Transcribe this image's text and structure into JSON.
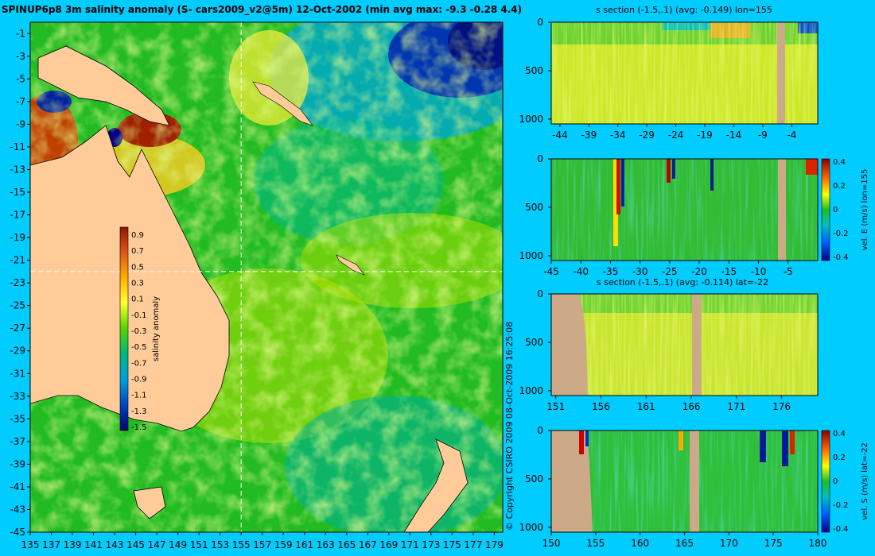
{
  "main_map": {
    "title": "SPINUP6p8 3m salinity anomaly (S- cars2009_v2@5m) 12-Oct-2002 (min avg max: -9.3 -0.28 4.4)",
    "lon_ticks": [
      135,
      137,
      139,
      141,
      143,
      145,
      147,
      149,
      151,
      153,
      155,
      157,
      159,
      161,
      163,
      165,
      167,
      169,
      171,
      173,
      175,
      177,
      179
    ],
    "lat_ticks": [
      -1,
      -3,
      -5,
      -7,
      -9,
      -11,
      -13,
      -15,
      -17,
      -19,
      -21,
      -23,
      -25,
      -27,
      -29,
      -31,
      -33,
      -35,
      -37,
      -39,
      -41,
      -43,
      -45
    ],
    "section_lon": 155,
    "section_lat": -22,
    "colorbar": {
      "label": "salinity anomaly",
      "ticks": [
        "0.9",
        "0.7",
        "0.5",
        "0.3",
        "0.1",
        "-0.1",
        "-0.3",
        "-0.5",
        "-0.7",
        "-0.9",
        "-1.1",
        "-1.3",
        "-1.5"
      ]
    },
    "copyright": "© Copyright CSIRO 2009   08-Oct-2009 16:25:08"
  },
  "colors": {
    "background": "#00ccff",
    "land": "#ffcc99",
    "section_land": "#ccaa88"
  },
  "chart_data": [
    {
      "type": "heatmap",
      "title": "s section (-1.5,.1) (avg: -0.149) lon=155",
      "x_ticks": [
        "-44",
        "-39",
        "-34",
        "-29",
        "-24",
        "-19",
        "-14",
        "-9",
        "-4"
      ],
      "y_ticks": [
        "0",
        "500",
        "1000"
      ],
      "xlim": [
        -45.5,
        0.5
      ],
      "ylim": [
        1050,
        0
      ],
      "colorbar": null
    },
    {
      "type": "heatmap",
      "title": "",
      "x_ticks": [
        "-45",
        "-40",
        "-35",
        "-30",
        "-25",
        "-20",
        "-15",
        "-10",
        "-5"
      ],
      "y_ticks": [
        "0",
        "500",
        "1000"
      ],
      "xlim": [
        -45,
        0
      ],
      "ylim": [
        1050,
        0
      ],
      "colorbar": {
        "label": "vel. E (m/s) lon=155",
        "ticks": [
          "0.4",
          "0.2",
          "0",
          "-0.2",
          "-0.4"
        ]
      }
    },
    {
      "type": "heatmap",
      "title": "s section (-1.5,.1) (avg: -0.114) lat=-22",
      "x_ticks": [
        "151",
        "156",
        "161",
        "166",
        "171",
        "176"
      ],
      "y_ticks": [
        "0",
        "500",
        "1000"
      ],
      "xlim": [
        150.5,
        180
      ],
      "ylim": [
        1050,
        0
      ],
      "colorbar": null
    },
    {
      "type": "heatmap",
      "title": "",
      "x_ticks": [
        "150",
        "155",
        "160",
        "165",
        "170",
        "175",
        "180"
      ],
      "y_ticks": [
        "0",
        "500",
        "1000"
      ],
      "xlim": [
        150,
        180
      ],
      "ylim": [
        1050,
        0
      ],
      "colorbar": {
        "label": "vel. S (m/s) lat=-22",
        "ticks": [
          "0.4",
          "0.2",
          "0",
          "-0.2",
          "-0.4"
        ]
      }
    }
  ]
}
